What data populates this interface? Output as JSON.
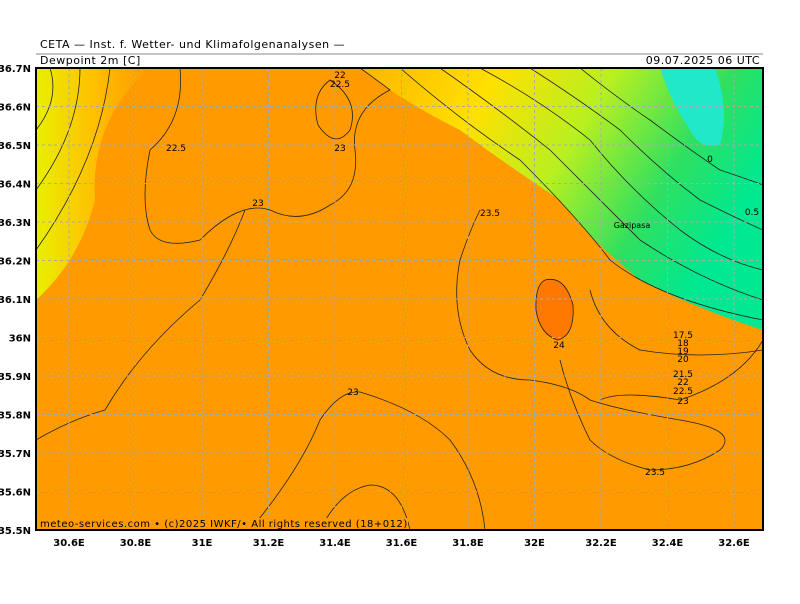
{
  "header": {
    "institute": "CETA — Inst. f. Wetter- und Klimafolgenanalysen —",
    "field": "Dewpoint 2m [C]",
    "valid_time": "09.07.2025 06 UTC"
  },
  "axes": {
    "lat_labels": [
      "36.7N",
      "36.6N",
      "36.5N",
      "36.4N",
      "36.3N",
      "36.2N",
      "36.1N",
      "36N",
      "35.9N",
      "35.8N",
      "35.7N",
      "35.6N",
      "35.5N"
    ],
    "lon_labels": [
      "30.6E",
      "30.8E",
      "31E",
      "31.2E",
      "31.4E",
      "31.6E",
      "31.8E",
      "32E",
      "32.2E",
      "32.4E",
      "32.6E"
    ]
  },
  "contour_labels": [
    "22",
    "22.5",
    "22.5",
    "23",
    "23",
    "23.5",
    "24",
    "0",
    "0.5",
    "17.5",
    "18",
    "19",
    "20",
    "21.5",
    "22",
    "22.5",
    "23",
    "23",
    "23.5"
  ],
  "place": "Gazipasa",
  "footer": "meteo-services.com • (c)2025 IWKF/• All rights reserved (18+012)"
}
